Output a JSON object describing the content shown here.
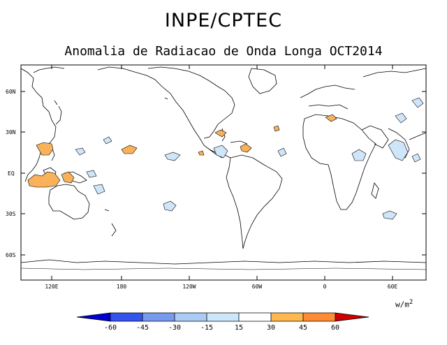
{
  "title": "INPE/CPTEC",
  "subtitle": "Anomalia de Radiacao de Onda Longa OCT2014",
  "lat_labels": [
    "60N",
    "30N",
    "EQ",
    "30S",
    "60S"
  ],
  "lon_labels": [
    "120E",
    "180",
    "120W",
    "60W",
    "0",
    "60E"
  ],
  "colorbar": {
    "labels": [
      "-60",
      "-45",
      "-30",
      "-15",
      "15",
      "30",
      "45",
      "60"
    ],
    "colors": [
      "#0000cc",
      "#3355ee",
      "#7799ee",
      "#aaccf4",
      "#cce6fa",
      "#ffffff",
      "#ffb84d",
      "#ff8c33",
      "#ff5522",
      "#cc0000"
    ],
    "units": "w/m",
    "units_exp": "2"
  },
  "map_colors": {
    "positive": "#f9b25a",
    "negative": "#cfe6fa",
    "land_line": "#000000"
  }
}
